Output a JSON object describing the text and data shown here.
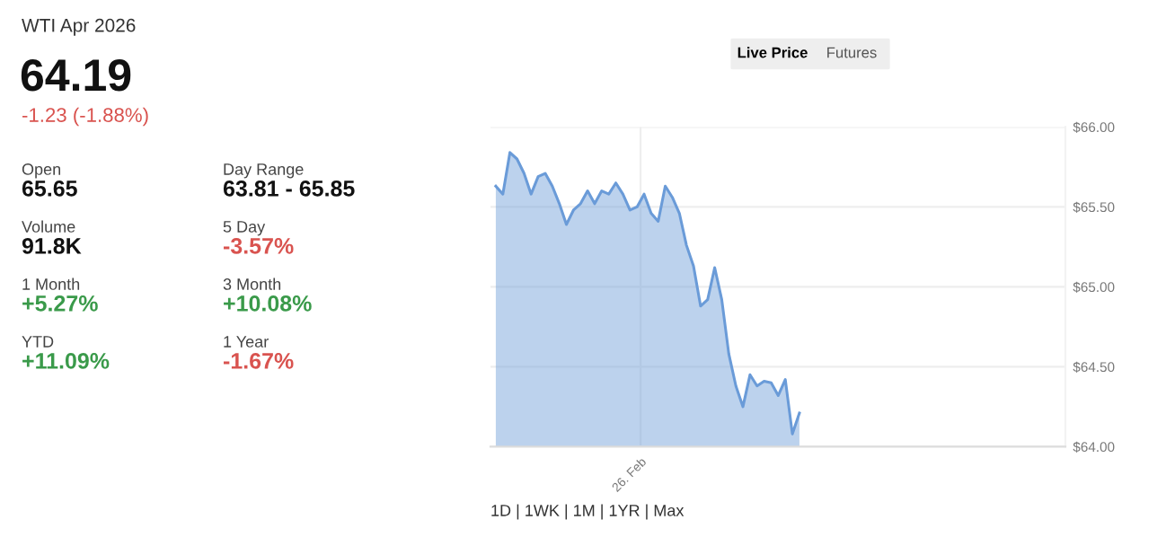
{
  "chart_data": {
    "type": "area",
    "title": "WTI Apr 2026",
    "subtitle": "64.19",
    "color": "#6a9bd8",
    "categories": [
      null,
      null,
      null,
      null,
      null,
      null,
      null,
      null,
      null,
      null,
      null,
      null,
      null,
      null,
      null,
      null,
      null,
      null,
      null,
      null,
      null,
      null,
      null,
      null,
      null,
      null,
      null,
      null,
      null,
      null,
      null,
      null,
      null,
      null,
      null,
      null,
      null,
      null,
      null,
      null,
      null,
      null,
      null,
      null
    ],
    "values": [
      65.63,
      65.58,
      65.84,
      65.8,
      65.71,
      65.58,
      65.69,
      65.71,
      65.63,
      65.52,
      65.39,
      65.48,
      65.52,
      65.6,
      65.52,
      65.6,
      65.58,
      65.65,
      65.58,
      65.48,
      65.5,
      65.58,
      65.46,
      65.41,
      65.63,
      65.56,
      65.46,
      65.26,
      65.13,
      64.88,
      64.92,
      65.12,
      64.92,
      64.58,
      64.38,
      64.25,
      64.45,
      64.38,
      64.41,
      64.4,
      64.32,
      64.42,
      64.08,
      64.21
    ],
    "ylim": [
      64,
      66
    ],
    "yticks": [
      {
        "value": 64,
        "label": "$64.00"
      },
      {
        "value": 64.5,
        "label": "$64.50"
      },
      {
        "value": 65,
        "label": "$65.00"
      },
      {
        "value": 65.5,
        "label": "$65.50"
      },
      {
        "value": 66,
        "label": "$66.00"
      }
    ],
    "grid": true,
    "annotations": [
      "-1.23 (-1.88%)",
      "Open",
      "65.65",
      "Day Range",
      "63.81 - 65.85",
      "Volume",
      "91.8K",
      "5 Day",
      "-3.57%",
      "1 Month",
      "+5.27%",
      "3 Month",
      "+10.08%",
      "YTD",
      "+11.09%",
      "1 Year",
      "-1.67%",
      "Live Price",
      "Futures",
      "1D | 1WK | 1M | 1YR | Max",
      "26. Feb"
    ]
  }
}
